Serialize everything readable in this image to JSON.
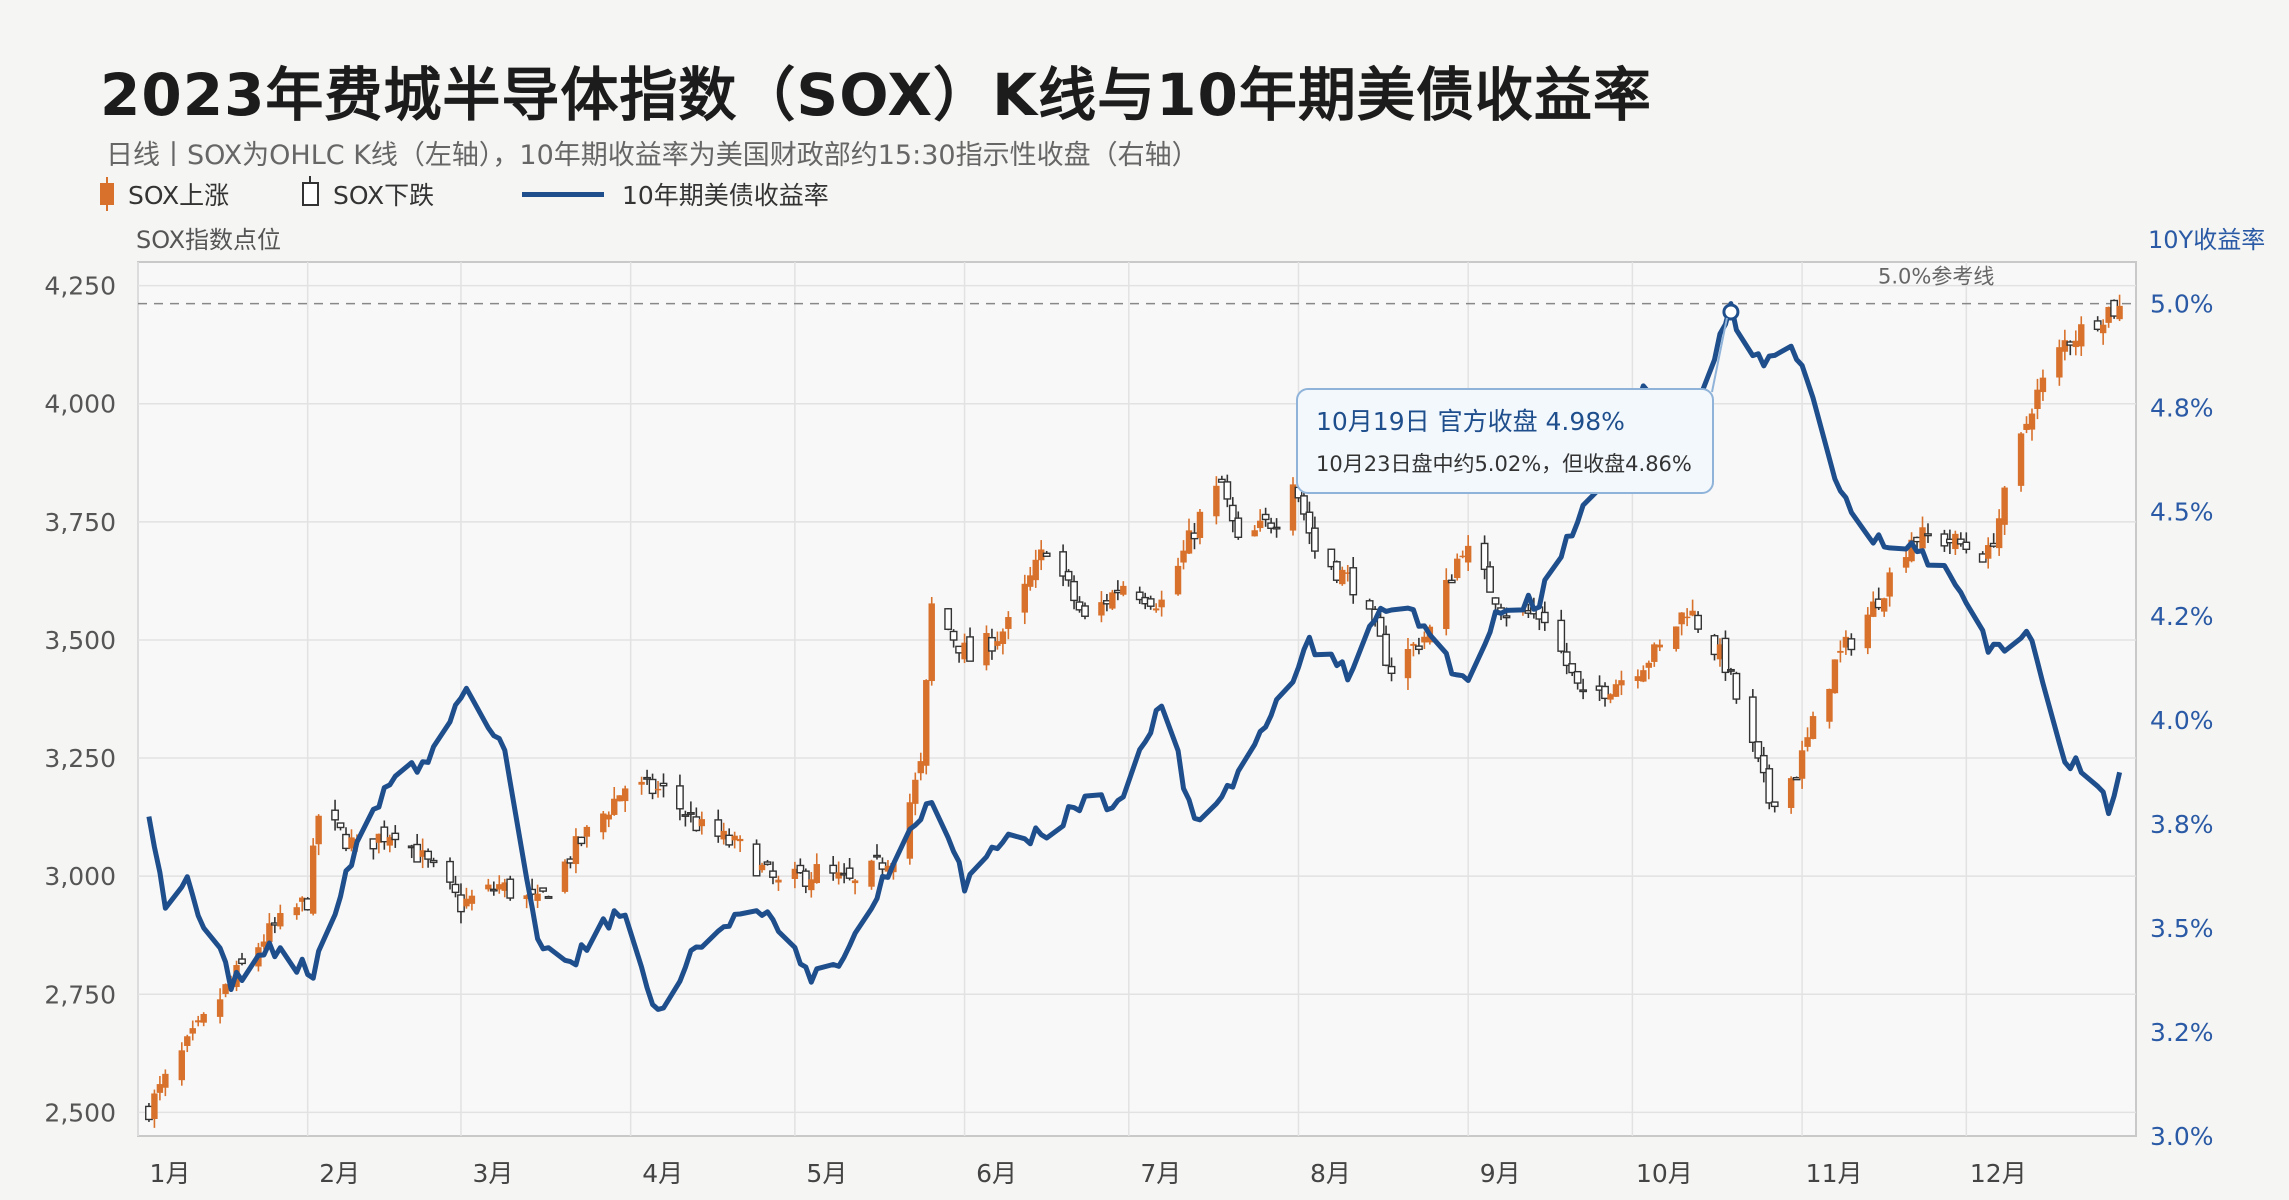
{
  "title": "2023年费城半导体指数（SOX）K线与10年期美债收益率",
  "subtitle": "日线丨SOX为OHLC K线（左轴），10年期收益率为美国财政部约15:30指示性收盘（右轴）",
  "legend": {
    "up": "SOX上涨",
    "down": "SOX下跌",
    "line": "10年期美债收益率"
  },
  "axis": {
    "left_title": "SOX指数点位",
    "right_title": "10Y收益率"
  },
  "reference_label": "5.0%参考线",
  "annotation": {
    "line1": "10月19日 官方收盘 4.98%",
    "line2": "10月23日盘中约5.02%，但收盘4.86%"
  },
  "colors": {
    "up": "#d8712b",
    "down": "#333333",
    "line": "#1f4e8c",
    "grid": "#e2e2e2",
    "plot_bg": "#f8f8f8"
  },
  "chart_data": {
    "type": "candlestick+line",
    "x_tick_labels": [
      "1月",
      "2月",
      "3月",
      "4月",
      "5月",
      "6月",
      "7月",
      "8月",
      "9月",
      "10月",
      "11月",
      "12月"
    ],
    "left_axis": {
      "ylim": [
        2450,
        4300
      ],
      "ticks": [
        2500,
        2750,
        3000,
        3250,
        3500,
        3750,
        4000,
        4250
      ],
      "tick_labels": [
        "2,500",
        "2,750",
        "3,000",
        "3,250",
        "3,500",
        "3,750",
        "4,000",
        "4,250"
      ]
    },
    "right_axis": {
      "ylim": [
        3.0,
        5.1
      ],
      "ticks": [
        3.0,
        3.25,
        3.5,
        3.75,
        4.0,
        4.25,
        4.5,
        4.75,
        5.0
      ],
      "tick_labels": [
        "3.0%",
        "3.2%",
        "3.5%",
        "3.8%",
        "4.0%",
        "4.2%",
        "4.5%",
        "4.8%",
        "5.0%"
      ]
    },
    "reference_line": 5.0,
    "sox_close_anchors": [
      [
        "2023-01-03",
        2510
      ],
      [
        "2023-01-10",
        2640
      ],
      [
        "2023-01-17",
        2760
      ],
      [
        "2023-01-24",
        2870
      ],
      [
        "2023-02-01",
        2950
      ],
      [
        "2023-02-03",
        3130
      ],
      [
        "2023-02-10",
        3060
      ],
      [
        "2023-02-17",
        3100
      ],
      [
        "2023-02-24",
        3010
      ],
      [
        "2023-03-01",
        2940
      ],
      [
        "2023-03-08",
        2980
      ],
      [
        "2023-03-15",
        2940
      ],
      [
        "2023-03-22",
        3060
      ],
      [
        "2023-03-31",
        3190
      ],
      [
        "2023-04-07",
        3180
      ],
      [
        "2023-04-14",
        3100
      ],
      [
        "2023-04-21",
        3060
      ],
      [
        "2023-04-28",
        2980
      ],
      [
        "2023-05-05",
        3010
      ],
      [
        "2023-05-12",
        2980
      ],
      [
        "2023-05-19",
        3050
      ],
      [
        "2023-05-24",
        3230
      ],
      [
        "2023-05-26",
        3570
      ],
      [
        "2023-06-02",
        3460
      ],
      [
        "2023-06-09",
        3530
      ],
      [
        "2023-06-16",
        3700
      ],
      [
        "2023-06-23",
        3540
      ],
      [
        "2023-06-30",
        3620
      ],
      [
        "2023-07-07",
        3580
      ],
      [
        "2023-07-14",
        3760
      ],
      [
        "2023-07-18",
        3830
      ],
      [
        "2023-07-21",
        3700
      ],
      [
        "2023-07-28",
        3760
      ],
      [
        "2023-07-31",
        3850
      ],
      [
        "2023-08-04",
        3690
      ],
      [
        "2023-08-11",
        3620
      ],
      [
        "2023-08-18",
        3440
      ],
      [
        "2023-08-25",
        3520
      ],
      [
        "2023-08-31",
        3700
      ],
      [
        "2023-09-08",
        3560
      ],
      [
        "2023-09-15",
        3550
      ],
      [
        "2023-09-22",
        3370
      ],
      [
        "2023-09-29",
        3420
      ],
      [
        "2023-10-06",
        3480
      ],
      [
        "2023-10-11",
        3570
      ],
      [
        "2023-10-18",
        3450
      ],
      [
        "2023-10-26",
        3160
      ],
      [
        "2023-10-31",
        3220
      ],
      [
        "2023-11-07",
        3450
      ],
      [
        "2023-11-14",
        3570
      ],
      [
        "2023-11-21",
        3720
      ],
      [
        "2023-11-28",
        3710
      ],
      [
        "2023-12-05",
        3680
      ],
      [
        "2023-12-08",
        3800
      ],
      [
        "2023-12-13",
        4000
      ],
      [
        "2023-12-19",
        4130
      ],
      [
        "2023-12-27",
        4200
      ]
    ],
    "yield_10y_anchors": [
      [
        "2023-01-03",
        3.79
      ],
      [
        "2023-01-06",
        3.56
      ],
      [
        "2023-01-10",
        3.61
      ],
      [
        "2023-01-18",
        3.37
      ],
      [
        "2023-01-25",
        3.45
      ],
      [
        "2023-02-02",
        3.39
      ],
      [
        "2023-02-09",
        3.66
      ],
      [
        "2023-02-16",
        3.86
      ],
      [
        "2023-02-23",
        3.9
      ],
      [
        "2023-03-02",
        4.08
      ],
      [
        "2023-03-09",
        3.93
      ],
      [
        "2023-03-15",
        3.46
      ],
      [
        "2023-03-22",
        3.43
      ],
      [
        "2023-03-30",
        3.55
      ],
      [
        "2023-04-06",
        3.29
      ],
      [
        "2023-04-13",
        3.45
      ],
      [
        "2023-04-20",
        3.53
      ],
      [
        "2023-04-27",
        3.52
      ],
      [
        "2023-05-04",
        3.37
      ],
      [
        "2023-05-11",
        3.44
      ],
      [
        "2023-05-18",
        3.64
      ],
      [
        "2023-05-26",
        3.8
      ],
      [
        "2023-06-01",
        3.61
      ],
      [
        "2023-06-08",
        3.72
      ],
      [
        "2023-06-15",
        3.72
      ],
      [
        "2023-06-22",
        3.8
      ],
      [
        "2023-06-30",
        3.81
      ],
      [
        "2023-07-07",
        4.05
      ],
      [
        "2023-07-13",
        3.76
      ],
      [
        "2023-07-20",
        3.85
      ],
      [
        "2023-07-27",
        4.01
      ],
      [
        "2023-08-03",
        4.18
      ],
      [
        "2023-08-10",
        4.11
      ],
      [
        "2023-08-17",
        4.28
      ],
      [
        "2023-08-24",
        4.23
      ],
      [
        "2023-08-31",
        4.09
      ],
      [
        "2023-09-07",
        4.27
      ],
      [
        "2023-09-14",
        4.29
      ],
      [
        "2023-09-21",
        4.49
      ],
      [
        "2023-09-28",
        4.59
      ],
      [
        "2023-10-03",
        4.81
      ],
      [
        "2023-10-10",
        4.65
      ],
      [
        "2023-10-19",
        4.98
      ],
      [
        "2023-10-23",
        4.86
      ],
      [
        "2023-10-31",
        4.88
      ],
      [
        "2023-11-07",
        4.58
      ],
      [
        "2023-11-14",
        4.44
      ],
      [
        "2023-11-21",
        4.41
      ],
      [
        "2023-11-28",
        4.34
      ],
      [
        "2023-12-05",
        4.17
      ],
      [
        "2023-12-12",
        4.21
      ],
      [
        "2023-12-19",
        3.92
      ],
      [
        "2023-12-27",
        3.79
      ],
      [
        "2023-12-29",
        3.88
      ]
    ],
    "highlight_point": [
      "2023-10-19",
      4.98
    ]
  }
}
